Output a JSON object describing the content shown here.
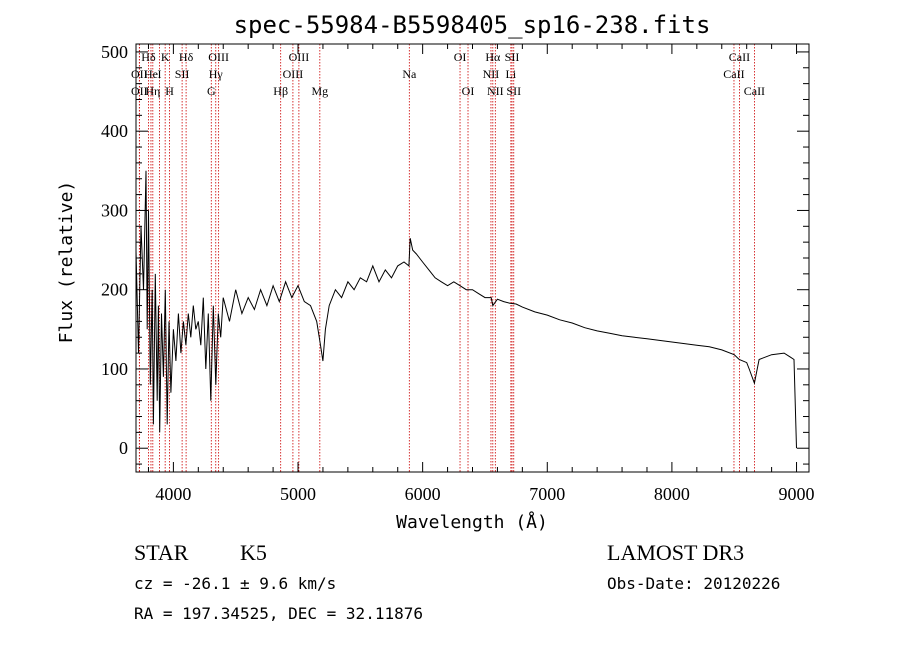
{
  "chart_data": {
    "type": "line",
    "title": "spec-55984-B5598405_sp16-238.fits",
    "xlabel": "Wavelength (Å)",
    "ylabel": "Flux (relative)",
    "xlim": [
      3700,
      9100
    ],
    "ylim": [
      -30,
      510
    ],
    "x_ticks": [
      4000,
      5000,
      6000,
      7000,
      8000,
      9000
    ],
    "y_ticks": [
      0,
      100,
      200,
      300,
      400,
      500
    ],
    "line_color": "#000000",
    "marker_color": "#cc0000",
    "series": [
      {
        "name": "spectrum",
        "points": [
          [
            3700,
            250
          ],
          [
            3720,
            120
          ],
          [
            3740,
            280
          ],
          [
            3760,
            200
          ],
          [
            3780,
            350
          ],
          [
            3790,
            150
          ],
          [
            3800,
            300
          ],
          [
            3815,
            80
          ],
          [
            3830,
            200
          ],
          [
            3840,
            30
          ],
          [
            3855,
            220
          ],
          [
            3870,
            60
          ],
          [
            3880,
            180
          ],
          [
            3890,
            20
          ],
          [
            3905,
            170
          ],
          [
            3920,
            90
          ],
          [
            3935,
            200
          ],
          [
            3950,
            30
          ],
          [
            3965,
            160
          ],
          [
            3980,
            70
          ],
          [
            4000,
            150
          ],
          [
            4020,
            110
          ],
          [
            4040,
            170
          ],
          [
            4060,
            120
          ],
          [
            4080,
            160
          ],
          [
            4100,
            130
          ],
          [
            4120,
            170
          ],
          [
            4140,
            140
          ],
          [
            4160,
            180
          ],
          [
            4180,
            150
          ],
          [
            4200,
            160
          ],
          [
            4220,
            130
          ],
          [
            4240,
            190
          ],
          [
            4260,
            100
          ],
          [
            4280,
            170
          ],
          [
            4300,
            60
          ],
          [
            4320,
            180
          ],
          [
            4340,
            80
          ],
          [
            4360,
            170
          ],
          [
            4380,
            140
          ],
          [
            4400,
            190
          ],
          [
            4450,
            160
          ],
          [
            4500,
            200
          ],
          [
            4550,
            170
          ],
          [
            4600,
            190
          ],
          [
            4650,
            175
          ],
          [
            4700,
            200
          ],
          [
            4750,
            180
          ],
          [
            4800,
            205
          ],
          [
            4850,
            185
          ],
          [
            4900,
            210
          ],
          [
            4950,
            190
          ],
          [
            5000,
            205
          ],
          [
            5050,
            185
          ],
          [
            5100,
            180
          ],
          [
            5150,
            160
          ],
          [
            5180,
            130
          ],
          [
            5200,
            110
          ],
          [
            5220,
            150
          ],
          [
            5250,
            180
          ],
          [
            5300,
            200
          ],
          [
            5350,
            190
          ],
          [
            5400,
            210
          ],
          [
            5450,
            200
          ],
          [
            5500,
            215
          ],
          [
            5550,
            210
          ],
          [
            5600,
            230
          ],
          [
            5650,
            210
          ],
          [
            5700,
            225
          ],
          [
            5750,
            215
          ],
          [
            5800,
            230
          ],
          [
            5850,
            235
          ],
          [
            5890,
            230
          ],
          [
            5900,
            265
          ],
          [
            5920,
            250
          ],
          [
            5950,
            245
          ],
          [
            6000,
            235
          ],
          [
            6050,
            225
          ],
          [
            6100,
            215
          ],
          [
            6150,
            210
          ],
          [
            6200,
            205
          ],
          [
            6250,
            210
          ],
          [
            6300,
            205
          ],
          [
            6350,
            200
          ],
          [
            6400,
            200
          ],
          [
            6450,
            195
          ],
          [
            6500,
            190
          ],
          [
            6550,
            190
          ],
          [
            6563,
            180
          ],
          [
            6600,
            188
          ],
          [
            6650,
            185
          ],
          [
            6700,
            183
          ],
          [
            6750,
            182
          ],
          [
            6800,
            178
          ],
          [
            6900,
            172
          ],
          [
            7000,
            168
          ],
          [
            7100,
            162
          ],
          [
            7200,
            158
          ],
          [
            7300,
            152
          ],
          [
            7400,
            148
          ],
          [
            7500,
            145
          ],
          [
            7600,
            142
          ],
          [
            7700,
            140
          ],
          [
            7800,
            138
          ],
          [
            7900,
            136
          ],
          [
            8000,
            134
          ],
          [
            8100,
            132
          ],
          [
            8200,
            130
          ],
          [
            8300,
            128
          ],
          [
            8400,
            124
          ],
          [
            8500,
            118
          ],
          [
            8540,
            112
          ],
          [
            8600,
            108
          ],
          [
            8620,
            100
          ],
          [
            8662,
            82
          ],
          [
            8700,
            112
          ],
          [
            8800,
            118
          ],
          [
            8900,
            120
          ],
          [
            8950,
            115
          ],
          [
            8980,
            112
          ],
          [
            9000,
            0
          ]
        ]
      }
    ],
    "lines": [
      {
        "label": "Hδ",
        "x": 3800,
        "row": 1
      },
      {
        "label": "OII",
        "x": 3727,
        "row": 2
      },
      {
        "label": "OII",
        "x": 3727,
        "row": 3
      },
      {
        "label": "He",
        "x": 3820,
        "row": 2
      },
      {
        "label": "Hη",
        "x": 3835,
        "row": 3
      },
      {
        "label": "K",
        "x": 3934,
        "row": 1
      },
      {
        "label": "I",
        "x": 3889,
        "row": 2
      },
      {
        "label": "H",
        "x": 3969,
        "row": 3
      },
      {
        "label": "Hδ",
        "x": 4102,
        "row": 1
      },
      {
        "label": "SII",
        "x": 4070,
        "row": 2
      },
      {
        "label": "OIII",
        "x": 4363,
        "row": 1
      },
      {
        "label": "Hγ",
        "x": 4340,
        "row": 2
      },
      {
        "label": "G",
        "x": 4304,
        "row": 3
      },
      {
        "label": "Hβ",
        "x": 4861,
        "row": 3
      },
      {
        "label": "OIII",
        "x": 5007,
        "row": 1
      },
      {
        "label": "OIII",
        "x": 4959,
        "row": 2
      },
      {
        "label": "Mg",
        "x": 5175,
        "row": 3
      },
      {
        "label": "Na",
        "x": 5893,
        "row": 2
      },
      {
        "label": "OI",
        "x": 6300,
        "row": 1
      },
      {
        "label": "OI",
        "x": 6364,
        "row": 3
      },
      {
        "label": "Hα",
        "x": 6563,
        "row": 1
      },
      {
        "label": "SII",
        "x": 6717,
        "row": 1
      },
      {
        "label": "NII",
        "x": 6548,
        "row": 2
      },
      {
        "label": "Li",
        "x": 6708,
        "row": 2
      },
      {
        "label": "NII",
        "x": 6583,
        "row": 3
      },
      {
        "label": "SII",
        "x": 6731,
        "row": 3
      },
      {
        "label": "CaII",
        "x": 8542,
        "row": 1
      },
      {
        "label": "CaII",
        "x": 8498,
        "row": 2
      },
      {
        "label": "CaII",
        "x": 8662,
        "row": 3
      }
    ]
  },
  "info": {
    "object_class": "STAR",
    "subclass": "K5",
    "survey": "LAMOST DR3",
    "redshift": "cz = -26.1 ± 9.6 km/s",
    "obs_date": "Obs-Date: 20120226",
    "coords": "RA = 197.34525, DEC =  32.11876"
  }
}
